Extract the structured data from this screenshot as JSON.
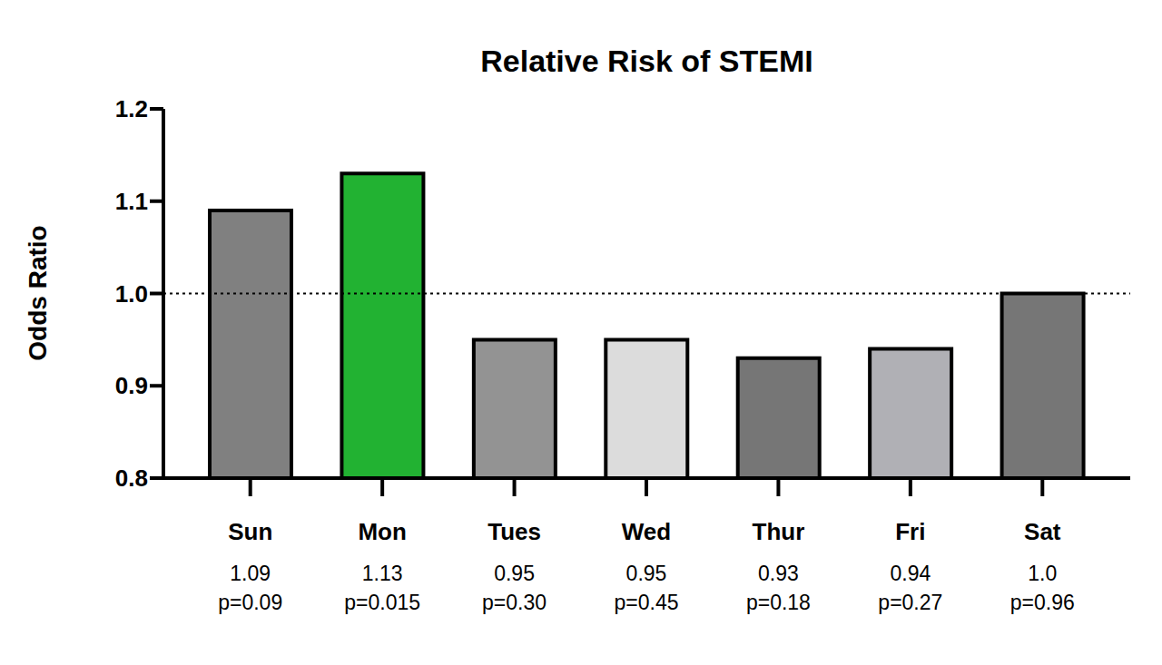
{
  "chart_data": {
    "type": "bar",
    "title": "Relative Risk of STEMI",
    "y_label": "Odds Ratio",
    "categories": [
      "Sun",
      "Mon",
      "Tues",
      "Wed",
      "Thur",
      "Fri",
      "Sat"
    ],
    "values": [
      1.09,
      1.13,
      0.95,
      0.95,
      0.93,
      0.94,
      1.0
    ],
    "value_labels": [
      "1.09",
      "1.13",
      "0.95",
      "0.95",
      "0.93",
      "0.94",
      "1.0"
    ],
    "p_values": [
      {
        "value": 0.09,
        "label": "p=0.09"
      },
      {
        "value": 0.015,
        "label": "p=0.015"
      },
      {
        "value": 0.3,
        "label": "p=0.30"
      },
      {
        "value": 0.45,
        "label": "p=0.45"
      },
      {
        "value": 0.18,
        "label": "p=0.18"
      },
      {
        "value": 0.27,
        "label": "p=0.27"
      },
      {
        "value": 0.96,
        "label": "p=0.96"
      }
    ],
    "colors": [
      "#808080",
      "#22b232",
      "#939393",
      "#dcdcdc",
      "#767676",
      "#b0b0b5",
      "#767676"
    ],
    "reference_line": 1,
    "ylim": [
      0.8,
      1.2
    ],
    "yticks": [
      0.8,
      0.9,
      {
        "value": 1,
        "label": "1.0"
      },
      1.1,
      1.2
    ],
    "grid": false
  }
}
